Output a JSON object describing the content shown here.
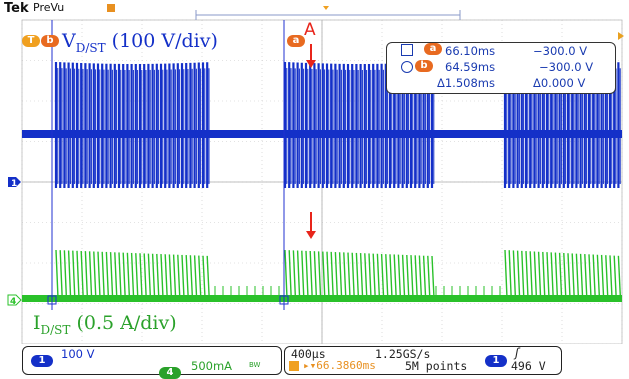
{
  "header": {
    "brand": "Tek",
    "mode": "PreVu"
  },
  "channels": {
    "ch1_label_main": "V",
    "ch1_label_sub": "D/ST",
    "ch1_label_tail": " (100 V/div)",
    "ch4_label_main": "I",
    "ch4_label_sub": "D/ST",
    "ch4_label_tail": " (0.5 A/div)",
    "ch1_color": "#1430c8",
    "ch4_color": "#2ac12a",
    "ch1_marker": "1",
    "ch4_marker": "4"
  },
  "annotation": {
    "letter": "A",
    "color": "#e8251b"
  },
  "cursor_tags": {
    "a": "a",
    "b": "b"
  },
  "cursor_readout": {
    "a_time": "66.10ms",
    "a_volt": "−300.0 V",
    "b_time": "64.59ms",
    "b_volt": "−300.0 V",
    "delta_time": "Δ1.508ms",
    "delta_volt": "Δ0.000 V"
  },
  "status_bar": {
    "ch1_badge": "1",
    "ch1_scale": "100 V",
    "ch4_badge": "4",
    "ch4_scale": "500mA",
    "ch4_bw": "BW",
    "timebase": "400µs",
    "sample_rate": "1.25GS/s",
    "trigger_badge": "1",
    "trigger_slope": "ʃ",
    "trigger_pos": "66.3860ms",
    "record_length": "5M points",
    "trigger_level": "496 V"
  }
}
